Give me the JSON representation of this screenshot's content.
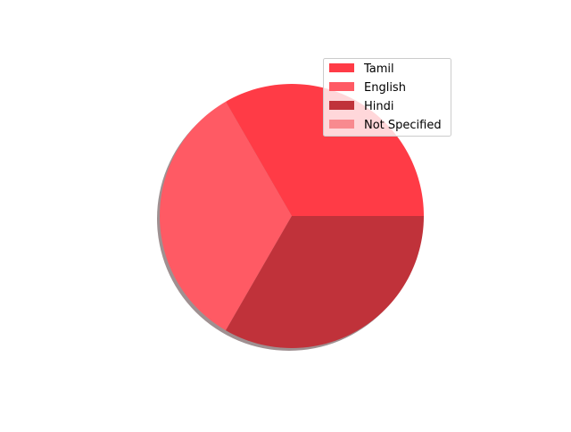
{
  "chart_data": {
    "type": "pie",
    "title": "",
    "categories": [
      "Tamil",
      "English",
      "Hindi",
      "Not Specified"
    ],
    "values": [
      1,
      1,
      1,
      0
    ],
    "colors": [
      "#ff3b46",
      "#ff5a64",
      "#c0323a",
      "#f88a8f"
    ],
    "start_angle_deg": 0,
    "direction": "counterclockwise",
    "shadow": true,
    "legend": {
      "placement": "upper-right",
      "entries": [
        "Tamil",
        "English",
        "Hindi",
        "Not Specified"
      ]
    }
  }
}
